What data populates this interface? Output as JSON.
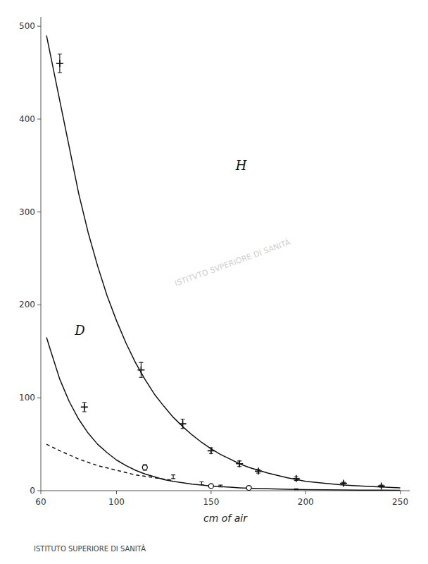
{
  "chart_data": {
    "type": "line",
    "xlabel": "cm of air",
    "xlim": [
      60,
      255
    ],
    "ylim": [
      0,
      510
    ],
    "xticks": [
      60,
      100,
      150,
      200,
      250
    ],
    "yticks": [
      0,
      100,
      200,
      300,
      400,
      500
    ],
    "grid": false,
    "color": "#111111",
    "series": [
      {
        "type": "line",
        "line_style": "solid",
        "x": [
          63,
          65,
          70,
          75,
          80,
          85,
          90,
          95,
          100,
          105,
          110,
          115,
          120,
          125,
          130,
          135,
          140,
          145,
          150,
          155,
          160,
          165,
          170,
          175,
          180,
          190,
          200,
          210,
          220,
          230,
          240,
          250
        ],
        "values": [
          490,
          470,
          420,
          370,
          320,
          278,
          242,
          210,
          183,
          159,
          138,
          120,
          104,
          91,
          79,
          69,
          60,
          52,
          45,
          39,
          34,
          29,
          25,
          22,
          19,
          14,
          10,
          8,
          6,
          5,
          4,
          3
        ]
      },
      {
        "type": "line",
        "line_style": "solid",
        "x": [
          63,
          65,
          70,
          75,
          80,
          85,
          90,
          95,
          100,
          105,
          110,
          115,
          120,
          125,
          130,
          135,
          140,
          145,
          150,
          155,
          160,
          165,
          170,
          175,
          180,
          190,
          200,
          210,
          220,
          230,
          240,
          250
        ],
        "values": [
          165,
          152,
          120,
          96,
          77,
          62,
          50,
          41,
          33,
          27,
          22,
          18,
          15,
          12,
          10,
          8.5,
          7,
          6,
          5,
          4.3,
          3.7,
          3.1,
          2.7,
          2.3,
          2.0,
          1.5,
          1.2,
          0.9,
          0.7,
          0.6,
          0.5,
          0.4
        ]
      },
      {
        "type": "line",
        "line_style": "dashed",
        "x": [
          63,
          70,
          80,
          90,
          100,
          110,
          120,
          130
        ],
        "values": [
          50,
          43,
          34,
          27,
          22,
          17,
          14,
          11
        ]
      },
      {
        "type": "scatter",
        "marker": "plus",
        "x": [
          70,
          83,
          113,
          135,
          150,
          165,
          175,
          195,
          220,
          240
        ],
        "values": [
          460,
          90,
          130,
          72,
          43,
          29,
          21,
          13,
          8,
          5
        ],
        "errors": [
          10,
          5,
          8,
          5,
          3,
          3,
          2,
          2,
          1,
          1
        ]
      },
      {
        "type": "scatter",
        "marker": "none",
        "x": [
          115,
          130,
          145,
          155,
          170,
          195
        ],
        "values": [
          25,
          15,
          8,
          5,
          3,
          1.5
        ],
        "errors": [
          3,
          2,
          1.5,
          1,
          0.8,
          0.5
        ]
      },
      {
        "type": "scatter",
        "marker": "circle",
        "x": [
          115,
          150,
          170
        ],
        "values": [
          25,
          5,
          3
        ]
      }
    ],
    "annotations": [
      {
        "text": "H",
        "x": 163,
        "y": 345
      },
      {
        "text": "D",
        "x": 78,
        "y": 168
      },
      {
        "text": "ISTITUTO SUPERIORE DI SANITÀ"
      },
      {
        "text": "ISTITVTO SVPERIORE DI SANITÀ"
      }
    ]
  }
}
